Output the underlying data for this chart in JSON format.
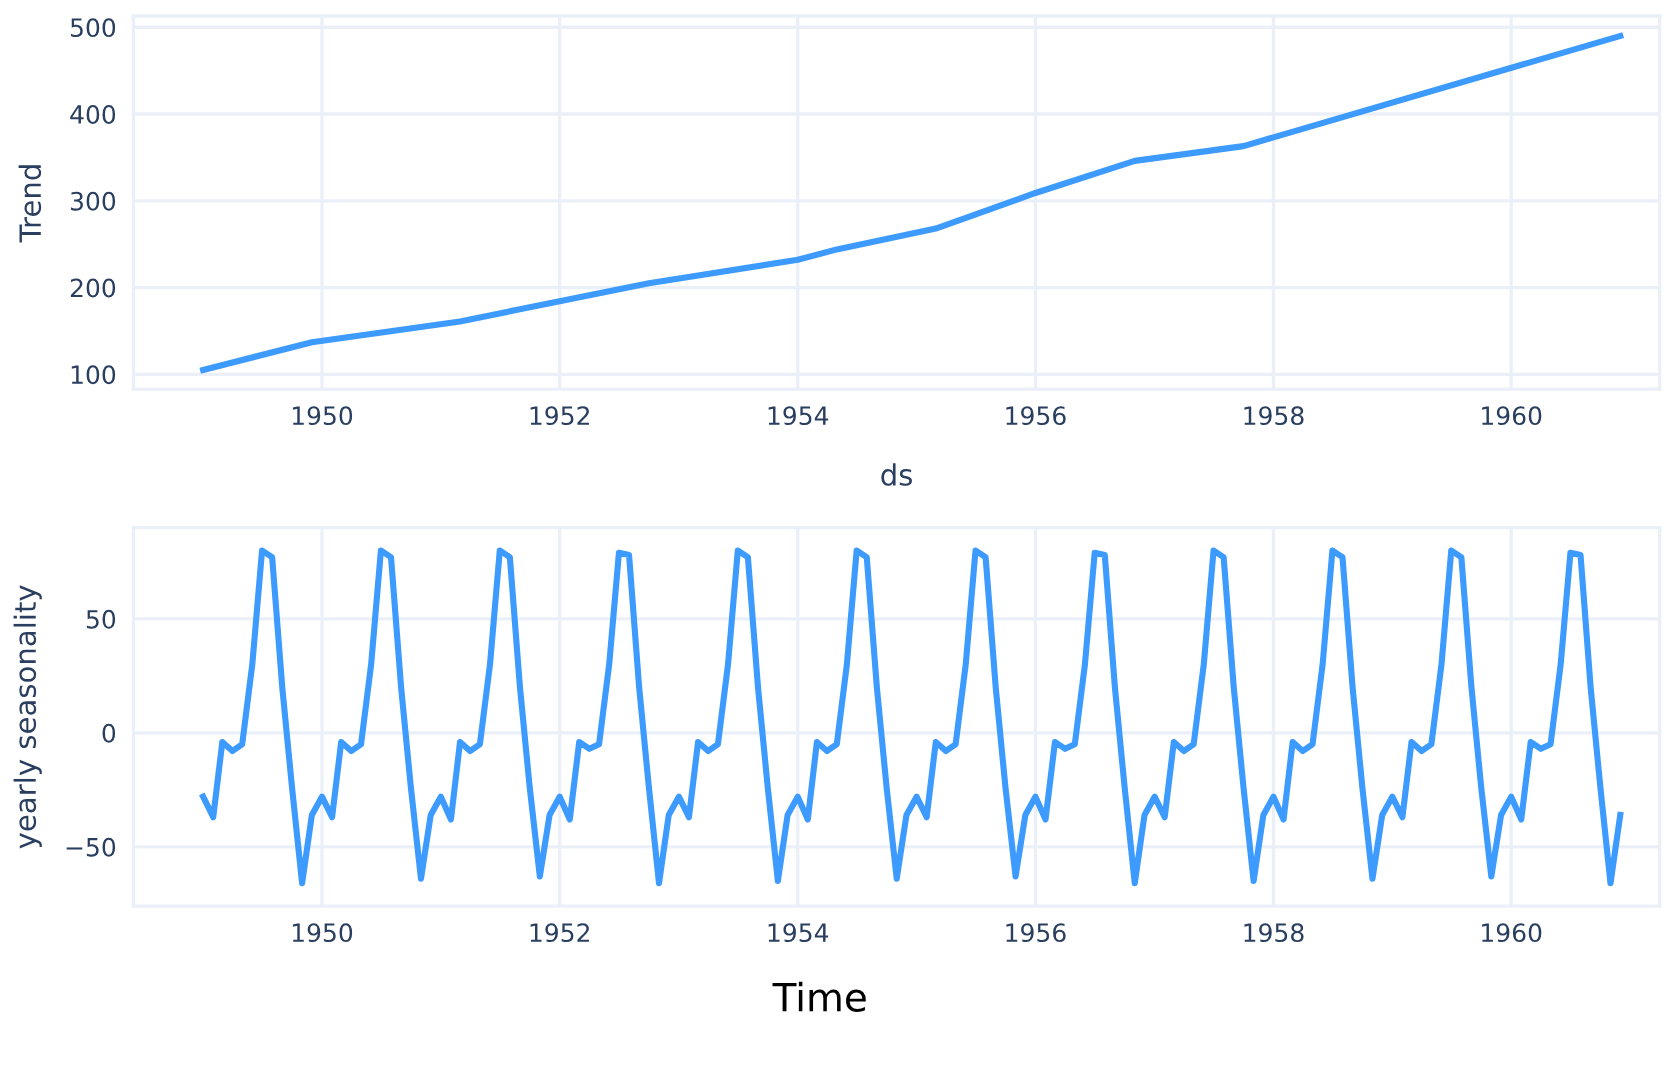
{
  "chart_data": [
    {
      "type": "line",
      "xlabel": "ds",
      "ylabel": "Trend",
      "x": [
        "1949-01",
        "1949-12",
        "1951-03",
        "1952-10",
        "1954-01",
        "1954-05",
        "1955-03",
        "1956-01",
        "1956-11",
        "1957-10",
        "1960-12"
      ],
      "series": [
        {
          "color": "#3d9bff",
          "values": [
            105,
            137,
            161,
            205,
            232,
            244,
            268,
            309,
            346,
            363,
            490
          ]
        }
      ],
      "xlim": [
        "1948-06-01",
        "1961-04-01"
      ],
      "xticks": [
        {
          "value": "1950-01-01",
          "label": "1950"
        },
        {
          "value": "1952-01-01",
          "label": "1952"
        },
        {
          "value": "1954-01-01",
          "label": "1954"
        },
        {
          "value": "1956-01-01",
          "label": "1956"
        },
        {
          "value": "1958-01-01",
          "label": "1958"
        },
        {
          "value": "1960-01-01",
          "label": "1960"
        }
      ],
      "ylim": [
        83,
        513
      ],
      "yticks": [
        100,
        200,
        300,
        400,
        500
      ],
      "grid": true,
      "line_style": "solid",
      "marker": "none"
    },
    {
      "type": "line",
      "ylabel": "yearly seasonality",
      "annotations": [
        "Time"
      ],
      "x": [
        "1949-01",
        "1949-02",
        "1949-03",
        "1949-04",
        "1949-05",
        "1949-06",
        "1949-07",
        "1949-08",
        "1949-09",
        "1949-10",
        "1949-11",
        "1949-12",
        "1950-01",
        "1950-02",
        "1950-03",
        "1950-04",
        "1950-05",
        "1950-06",
        "1950-07",
        "1950-08",
        "1950-09",
        "1950-10",
        "1950-11",
        "1950-12",
        "1951-01",
        "1951-02",
        "1951-03",
        "1951-04",
        "1951-05",
        "1951-06",
        "1951-07",
        "1951-08",
        "1951-09",
        "1951-10",
        "1951-11",
        "1951-12",
        "1952-01",
        "1952-02",
        "1952-03",
        "1952-04",
        "1952-05",
        "1952-06",
        "1952-07",
        "1952-08",
        "1952-09",
        "1952-10",
        "1952-11",
        "1952-12",
        "1953-01",
        "1953-02",
        "1953-03",
        "1953-04",
        "1953-05",
        "1953-06",
        "1953-07",
        "1953-08",
        "1953-09",
        "1953-10",
        "1953-11",
        "1953-12",
        "1954-01",
        "1954-02",
        "1954-03",
        "1954-04",
        "1954-05",
        "1954-06",
        "1954-07",
        "1954-08",
        "1954-09",
        "1954-10",
        "1954-11",
        "1954-12",
        "1955-01",
        "1955-02",
        "1955-03",
        "1955-04",
        "1955-05",
        "1955-06",
        "1955-07",
        "1955-08",
        "1955-09",
        "1955-10",
        "1955-11",
        "1955-12",
        "1956-01",
        "1956-02",
        "1956-03",
        "1956-04",
        "1956-05",
        "1956-06",
        "1956-07",
        "1956-08",
        "1956-09",
        "1956-10",
        "1956-11",
        "1956-12",
        "1957-01",
        "1957-02",
        "1957-03",
        "1957-04",
        "1957-05",
        "1957-06",
        "1957-07",
        "1957-08",
        "1957-09",
        "1957-10",
        "1957-11",
        "1957-12",
        "1958-01",
        "1958-02",
        "1958-03",
        "1958-04",
        "1958-05",
        "1958-06",
        "1958-07",
        "1958-08",
        "1958-09",
        "1958-10",
        "1958-11",
        "1958-12",
        "1959-01",
        "1959-02",
        "1959-03",
        "1959-04",
        "1959-05",
        "1959-06",
        "1959-07",
        "1959-08",
        "1959-09",
        "1959-10",
        "1959-11",
        "1959-12",
        "1960-01",
        "1960-02",
        "1960-03",
        "1960-04",
        "1960-05",
        "1960-06",
        "1960-07",
        "1960-08",
        "1960-09",
        "1960-10",
        "1960-11",
        "1960-12"
      ],
      "series": [
        {
          "color": "#3d9bff",
          "values": [
            -28,
            -37,
            -4,
            -8,
            -5,
            30,
            80,
            77,
            20,
            -24,
            -66,
            -36,
            -28,
            -37,
            -4,
            -8,
            -5,
            30,
            80,
            77,
            20,
            -24,
            -64,
            -36,
            -28,
            -38,
            -4,
            -8,
            -5,
            30,
            80,
            77,
            20,
            -24,
            -63,
            -36,
            -28,
            -38,
            -4,
            -7,
            -5,
            30,
            79,
            78,
            20,
            -24,
            -66,
            -36,
            -28,
            -37,
            -4,
            -8,
            -5,
            30,
            80,
            77,
            20,
            -24,
            -65,
            -36,
            -28,
            -38,
            -4,
            -8,
            -5,
            30,
            80,
            77,
            20,
            -24,
            -64,
            -36,
            -28,
            -37,
            -4,
            -8,
            -5,
            30,
            80,
            77,
            20,
            -24,
            -63,
            -36,
            -28,
            -38,
            -4,
            -7,
            -5,
            30,
            79,
            78,
            20,
            -24,
            -66,
            -36,
            -28,
            -37,
            -4,
            -8,
            -5,
            30,
            80,
            77,
            20,
            -24,
            -65,
            -36,
            -28,
            -38,
            -4,
            -8,
            -5,
            30,
            80,
            77,
            20,
            -24,
            -64,
            -36,
            -28,
            -37,
            -4,
            -8,
            -5,
            30,
            80,
            77,
            20,
            -24,
            -63,
            -36,
            -28,
            -38,
            -4,
            -7,
            -5,
            30,
            79,
            78,
            20,
            -24,
            -66,
            -36
          ]
        }
      ],
      "xlim": [
        "1948-06-01",
        "1961-04-01"
      ],
      "xticks": [
        {
          "value": "1950-01-01",
          "label": "1950"
        },
        {
          "value": "1952-01-01",
          "label": "1952"
        },
        {
          "value": "1954-01-01",
          "label": "1954"
        },
        {
          "value": "1956-01-01",
          "label": "1956"
        },
        {
          "value": "1958-01-01",
          "label": "1958"
        },
        {
          "value": "1960-01-01",
          "label": "1960"
        }
      ],
      "ylim": [
        -76,
        90
      ],
      "yticks": [
        {
          "value": -50,
          "label": "−50"
        },
        0,
        50
      ],
      "grid": true,
      "line_style": "solid",
      "marker": "none"
    }
  ]
}
